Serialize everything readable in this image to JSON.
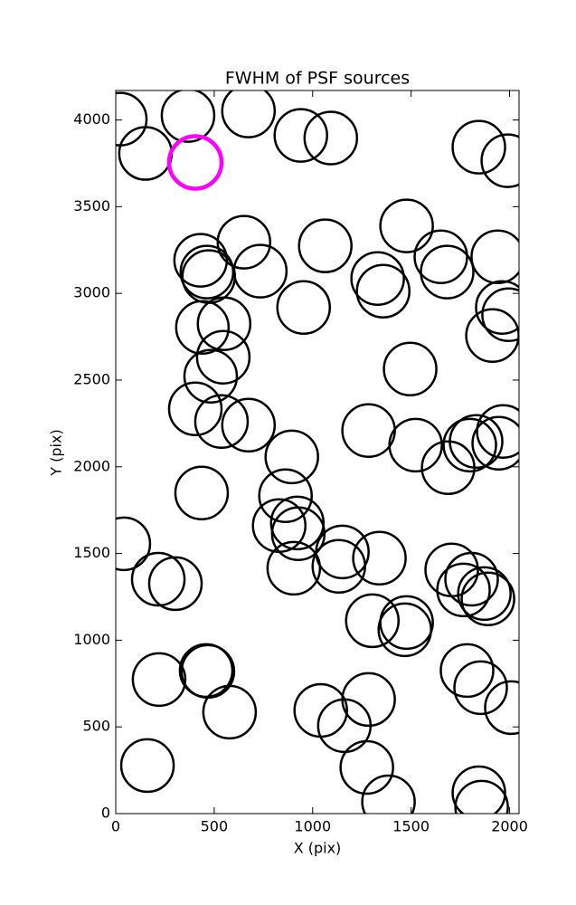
{
  "chart_data": {
    "type": "scatter",
    "title": "FWHM of PSF sources",
    "x_label": "X (pix)",
    "y_label": "Y (pix)",
    "xlim": [
      0,
      2048
    ],
    "ylim": [
      0,
      4170
    ],
    "xticks": [
      0,
      500,
      1000,
      1500,
      2000
    ],
    "yticks": [
      0,
      500,
      1000,
      1500,
      2000,
      2500,
      3000,
      3500,
      4000
    ],
    "series": [
      {
        "color": "#000000",
        "x": [
          23,
          151,
          367,
          674,
          940,
          1092,
          1844,
          1991,
          1477,
          1651,
          1683,
          1940,
          1064,
          651,
          734,
          431,
          463,
          472,
          1330,
          1358,
          954,
          1963,
          1995,
          1913,
          440,
          550,
          546,
          482,
          1495,
          404,
          537,
          674,
          1284,
          1523,
          1688,
          1798,
          1830,
          1945,
          1968,
          894,
          862,
          436,
          830,
          922,
          927,
          41,
          216,
          303,
          904,
          1151,
          1133,
          1339,
          1706,
          1766,
          1807,
          1872,
          1890,
          1303,
          1477,
          1468,
          220,
          459,
          468,
          578,
          1041,
          1161,
          1284,
          1784,
          1853,
          2009,
          1275,
          161,
          1385,
          1844,
          1858
        ],
        "values": [
          4005,
          3807,
          4026,
          4052,
          3911,
          3896,
          3843,
          3765,
          3389,
          3211,
          3123,
          3211,
          3274,
          3295,
          3128,
          3191,
          3123,
          3097,
          3086,
          3013,
          2919,
          2919,
          2877,
          2757,
          2804,
          2825,
          2632,
          2522,
          2564,
          2334,
          2261,
          2240,
          2209,
          2125,
          1995,
          2125,
          2146,
          2136,
          2204,
          2057,
          1833,
          1849,
          1661,
          1676,
          1614,
          1556,
          1352,
          1326,
          1415,
          1509,
          1426,
          1473,
          1405,
          1290,
          1352,
          1269,
          1238,
          1112,
          1102,
          1060,
          773,
          825,
          820,
          585,
          595,
          507,
          658,
          825,
          726,
          611,
          266,
          277,
          68,
          120,
          37
        ]
      },
      {
        "color": "#ff00ff",
        "x": [
          404
        ],
        "values": [
          3755
        ]
      }
    ]
  }
}
